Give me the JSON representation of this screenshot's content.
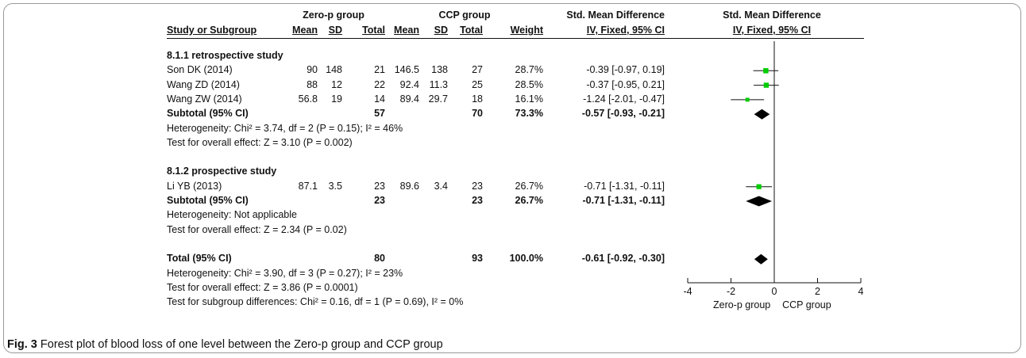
{
  "header": {
    "group1": "Zero-p group",
    "group2": "CCP group",
    "effect_top": "Std. Mean Difference",
    "effect_sub": "IV, Fixed, 95% CI",
    "plot_top": "Std. Mean Difference",
    "plot_sub": "IV, Fixed, 95% CI",
    "study": "Study or Subgroup",
    "mean": "Mean",
    "sd": "SD",
    "total": "Total",
    "weight": "Weight"
  },
  "rows": [
    {
      "kind": "group",
      "label": "8.1.1 retrospective study"
    },
    {
      "kind": "study",
      "label": "Son DK (2014)",
      "m1": "90",
      "sd1": "148",
      "n1": "21",
      "m2": "146.5",
      "sd2": "138",
      "n2": "27",
      "weight": "28.7%",
      "ci": "-0.39 [-0.97, 0.19]",
      "est": -0.39,
      "lo": -0.97,
      "hi": 0.19,
      "w": 28.7
    },
    {
      "kind": "study",
      "label": "Wang ZD (2014)",
      "m1": "88",
      "sd1": "12",
      "n1": "22",
      "m2": "92.4",
      "sd2": "11.3",
      "n2": "25",
      "weight": "28.5%",
      "ci": "-0.37 [-0.95, 0.21]",
      "est": -0.37,
      "lo": -0.95,
      "hi": 0.21,
      "w": 28.5
    },
    {
      "kind": "study",
      "label": "Wang ZW (2014)",
      "m1": "56.8",
      "sd1": "19",
      "n1": "14",
      "m2": "89.4",
      "sd2": "29.7",
      "n2": "18",
      "weight": "16.1%",
      "ci": "-1.24 [-2.01, -0.47]",
      "est": -1.24,
      "lo": -2.01,
      "hi": -0.47,
      "w": 16.1
    },
    {
      "kind": "subtotal",
      "label": "Subtotal (95% CI)",
      "n1": "57",
      "n2": "70",
      "weight": "73.3%",
      "ci": "-0.57 [-0.93, -0.21]",
      "est": -0.57,
      "lo": -0.93,
      "hi": -0.21
    },
    {
      "kind": "note",
      "label": "Heterogeneity: Chi² = 3.74, df = 2 (P = 0.15); I² = 46%"
    },
    {
      "kind": "note",
      "label": "Test for overall effect: Z = 3.10 (P = 0.002)"
    },
    {
      "kind": "blank"
    },
    {
      "kind": "group",
      "label": "8.1.2 prospective study"
    },
    {
      "kind": "study",
      "label": "Li YB (2013)",
      "m1": "87.1",
      "sd1": "3.5",
      "n1": "23",
      "m2": "89.6",
      "sd2": "3.4",
      "n2": "23",
      "weight": "26.7%",
      "ci": "-0.71 [-1.31, -0.11]",
      "est": -0.71,
      "lo": -1.31,
      "hi": -0.11,
      "w": 26.7
    },
    {
      "kind": "subtotal",
      "label": "Subtotal (95% CI)",
      "n1": "23",
      "n2": "23",
      "weight": "26.7%",
      "ci": "-0.71 [-1.31, -0.11]",
      "est": -0.71,
      "lo": -1.31,
      "hi": -0.11
    },
    {
      "kind": "note",
      "label": "Heterogeneity: Not applicable"
    },
    {
      "kind": "note",
      "label": "Test for overall effect: Z = 2.34 (P = 0.02)"
    },
    {
      "kind": "blank"
    },
    {
      "kind": "total",
      "label": "Total (95% CI)",
      "n1": "80",
      "n2": "93",
      "weight": "100.0%",
      "ci": "-0.61 [-0.92, -0.30]",
      "est": -0.61,
      "lo": -0.92,
      "hi": -0.3
    },
    {
      "kind": "note",
      "label": "Heterogeneity: Chi² = 3.90, df = 3 (P = 0.27); I² = 23%"
    },
    {
      "kind": "note",
      "label": "Test for overall effect: Z = 3.86 (P = 0.0001)"
    },
    {
      "kind": "note",
      "label": "Test for subgroup differences: Chi² = 0.16, df = 1 (P = 0.69), I² = 0%"
    }
  ],
  "chart_data": {
    "type": "forest",
    "xlim": [
      -4,
      4
    ],
    "ticks": [
      "-4",
      "-2",
      "0",
      "2",
      "4"
    ],
    "tick_values": [
      -4,
      -2,
      0,
      2,
      4
    ],
    "favours_left": "Zero-p group",
    "favours_right": "CCP group",
    "square_color": "#00cc00"
  },
  "caption": {
    "label": "Fig. 3",
    "text": " Forest plot of blood loss of one level between the Zero-p group and CCP group"
  }
}
